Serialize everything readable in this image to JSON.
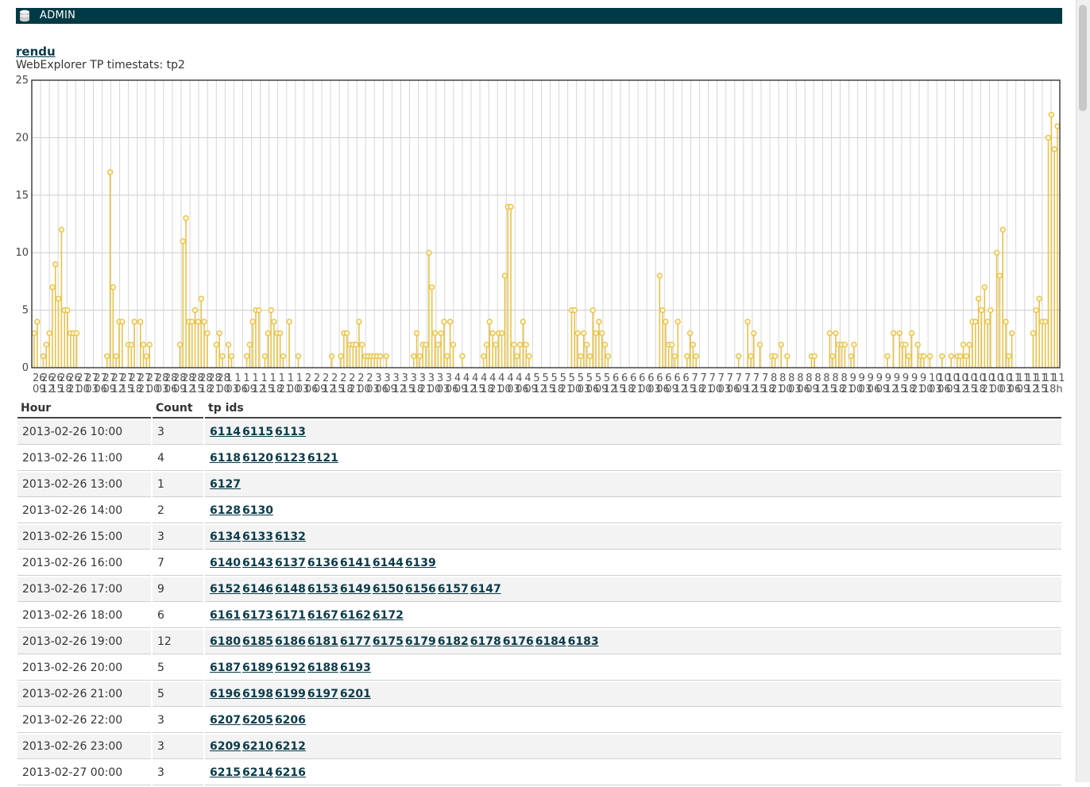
{
  "header": {
    "title": "ADMIN"
  },
  "page": {
    "link": "rendu",
    "subtitle": "WebExplorer TP timestats: tp2"
  },
  "chart_data": {
    "type": "bar",
    "ylim": [
      0,
      25
    ],
    "yticks": [
      0,
      5,
      10,
      15,
      20,
      25
    ],
    "grid": true,
    "tick_labels_top": [
      "26",
      "26",
      "26",
      "26",
      "26",
      "27",
      "27",
      "27",
      "27",
      "27",
      "27",
      "27",
      "27",
      "27",
      "28",
      "28",
      "28",
      "28",
      "28",
      "28",
      "28",
      "28",
      "1",
      "1",
      "1",
      "1",
      "1",
      "1",
      "1",
      "1",
      "1",
      "2",
      "2",
      "2",
      "2",
      "2",
      "2",
      "2",
      "2",
      "3",
      "3",
      "3",
      "3",
      "3",
      "3",
      "3",
      "3",
      "3",
      "4",
      "4",
      "4",
      "4",
      "4",
      "4",
      "4",
      "4",
      "4",
      "5",
      "5",
      "5",
      "5",
      "5",
      "5",
      "5",
      "5",
      "5",
      "6",
      "6",
      "6",
      "6",
      "6",
      "6",
      "6",
      "6",
      "6",
      "7",
      "7",
      "7",
      "7",
      "7",
      "7",
      "7",
      "7",
      "7",
      "8",
      "8",
      "8",
      "8",
      "8",
      "8",
      "8",
      "8",
      "8",
      "9",
      "9",
      "9",
      "9",
      "9",
      "9",
      "9",
      "9",
      "9",
      "10",
      "10",
      "10",
      "10",
      "10",
      "10",
      "10",
      "10",
      "10",
      "11",
      "11",
      "11",
      "11",
      "11",
      "11"
    ],
    "tick_labels_bottom": [
      "09",
      "12",
      "15",
      "18",
      "21",
      "00",
      "03",
      "06",
      "09",
      "12",
      "15",
      "18",
      "21",
      "00",
      "03",
      "06",
      "09",
      "12",
      "15",
      "18",
      "21",
      "00",
      "03",
      "06",
      "09",
      "12",
      "15",
      "18",
      "21",
      "00",
      "03",
      "06",
      "09",
      "12",
      "15",
      "18",
      "21",
      "00",
      "03",
      "06",
      "09",
      "12",
      "15",
      "18",
      "21",
      "00",
      "03",
      "06",
      "09",
      "12",
      "15",
      "18",
      "21",
      "00",
      "03",
      "06",
      "09",
      "12",
      "15",
      "18",
      "21",
      "00",
      "03",
      "06",
      "09",
      "12",
      "15",
      "18",
      "21",
      "00",
      "03",
      "06",
      "09",
      "12",
      "15",
      "18",
      "21",
      "00",
      "03",
      "06",
      "09",
      "12",
      "15",
      "18",
      "21",
      "00",
      "03",
      "06",
      "09",
      "12",
      "15",
      "18",
      "21",
      "00",
      "03",
      "06",
      "09",
      "12",
      "15",
      "18",
      "21",
      "00",
      "03",
      "06",
      "09",
      "12",
      "15",
      "18",
      "21",
      "00",
      "03",
      "06",
      "09",
      "12",
      "15",
      "18h"
    ],
    "values": [
      3,
      4,
      0,
      1,
      2,
      3,
      7,
      9,
      6,
      12,
      5,
      5,
      3,
      3,
      3,
      0,
      0,
      0,
      0,
      0,
      0,
      0,
      0,
      0,
      1,
      17,
      7,
      1,
      4,
      4,
      0,
      2,
      2,
      4,
      0,
      4,
      2,
      1,
      2,
      0,
      0,
      0,
      0,
      0,
      0,
      0,
      0,
      0,
      2,
      11,
      13,
      4,
      4,
      5,
      4,
      6,
      4,
      3,
      0,
      0,
      2,
      3,
      1,
      0,
      2,
      1,
      0,
      0,
      0,
      0,
      1,
      2,
      4,
      5,
      5,
      0,
      1,
      3,
      5,
      4,
      3,
      3,
      1,
      0,
      4,
      0,
      0,
      1,
      0,
      0,
      0,
      0,
      0,
      0,
      0,
      0,
      0,
      0,
      1,
      0,
      0,
      1,
      3,
      3,
      2,
      2,
      2,
      4,
      2,
      1,
      1,
      1,
      1,
      1,
      1,
      0,
      1,
      0,
      0,
      0,
      0,
      0,
      0,
      0,
      0,
      1,
      3,
      1,
      2,
      2,
      10,
      7,
      3,
      2,
      3,
      4,
      1,
      4,
      2,
      0,
      0,
      1,
      0,
      0,
      0,
      0,
      0,
      0,
      1,
      2,
      4,
      3,
      2,
      3,
      3,
      8,
      14,
      14,
      2,
      1,
      2,
      4,
      2,
      1,
      0,
      0,
      0,
      0,
      0,
      0,
      0,
      0,
      0,
      0,
      0,
      0,
      0,
      5,
      5,
      3,
      1,
      3,
      2,
      1,
      5,
      3,
      4,
      3,
      2,
      1,
      0,
      0,
      0,
      0,
      0,
      0,
      0,
      0,
      0,
      0,
      0,
      0,
      0,
      0,
      0,
      0,
      8,
      5,
      4,
      2,
      2,
      1,
      4,
      0,
      0,
      1,
      3,
      2,
      1,
      0,
      0,
      0,
      0,
      0,
      0,
      0,
      0,
      0,
      0,
      0,
      0,
      0,
      1,
      0,
      0,
      4,
      1,
      3,
      0,
      2,
      0,
      0,
      0,
      1,
      1,
      0,
      2,
      0,
      1,
      0,
      0,
      0,
      0,
      0,
      0,
      0,
      1,
      1,
      0,
      0,
      0,
      0,
      3,
      1,
      3,
      2,
      2,
      2,
      0,
      1,
      2,
      0,
      0,
      0,
      0,
      0,
      0,
      0,
      0,
      0,
      0,
      1,
      0,
      3,
      0,
      3,
      2,
      2,
      1,
      3,
      0,
      2,
      1,
      1,
      0,
      1,
      0,
      0,
      0,
      1,
      0,
      0,
      1,
      0,
      1,
      1,
      2,
      1,
      2,
      4,
      4,
      6,
      5,
      7,
      4,
      5,
      0,
      10,
      8,
      12,
      4,
      1,
      3,
      0,
      0,
      0,
      0,
      0,
      0,
      3,
      5,
      6,
      4,
      4,
      20,
      22,
      19,
      21
    ],
    "color": "#e8c24a"
  },
  "table": {
    "headers": {
      "hour": "Hour",
      "count": "Count",
      "ids": "tp ids"
    },
    "rows": [
      {
        "hour": "2013-02-26 10:00",
        "count": "3",
        "ids": [
          "6114",
          "6115",
          "6113"
        ]
      },
      {
        "hour": "2013-02-26 11:00",
        "count": "4",
        "ids": [
          "6118",
          "6120",
          "6123",
          "6121"
        ]
      },
      {
        "hour": "2013-02-26 13:00",
        "count": "1",
        "ids": [
          "6127"
        ]
      },
      {
        "hour": "2013-02-26 14:00",
        "count": "2",
        "ids": [
          "6128",
          "6130"
        ]
      },
      {
        "hour": "2013-02-26 15:00",
        "count": "3",
        "ids": [
          "6134",
          "6133",
          "6132"
        ]
      },
      {
        "hour": "2013-02-26 16:00",
        "count": "7",
        "ids": [
          "6140",
          "6143",
          "6137",
          "6136",
          "6141",
          "6144",
          "6139"
        ]
      },
      {
        "hour": "2013-02-26 17:00",
        "count": "9",
        "ids": [
          "6152",
          "6146",
          "6148",
          "6153",
          "6149",
          "6150",
          "6156",
          "6157",
          "6147"
        ]
      },
      {
        "hour": "2013-02-26 18:00",
        "count": "6",
        "ids": [
          "6161",
          "6173",
          "6171",
          "6167",
          "6162",
          "6172"
        ]
      },
      {
        "hour": "2013-02-26 19:00",
        "count": "12",
        "ids": [
          "6180",
          "6185",
          "6186",
          "6181",
          "6177",
          "6175",
          "6179",
          "6182",
          "6178",
          "6176",
          "6184",
          "6183"
        ]
      },
      {
        "hour": "2013-02-26 20:00",
        "count": "5",
        "ids": [
          "6187",
          "6189",
          "6192",
          "6188",
          "6193"
        ]
      },
      {
        "hour": "2013-02-26 21:00",
        "count": "5",
        "ids": [
          "6196",
          "6198",
          "6199",
          "6197",
          "6201"
        ]
      },
      {
        "hour": "2013-02-26 22:00",
        "count": "3",
        "ids": [
          "6207",
          "6205",
          "6206"
        ]
      },
      {
        "hour": "2013-02-26 23:00",
        "count": "3",
        "ids": [
          "6209",
          "6210",
          "6212"
        ]
      },
      {
        "hour": "2013-02-27 00:00",
        "count": "3",
        "ids": [
          "6215",
          "6214",
          "6216"
        ]
      }
    ]
  }
}
